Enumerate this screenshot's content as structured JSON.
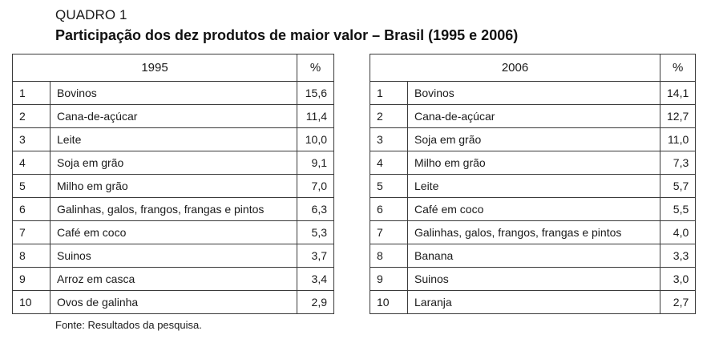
{
  "heading": "QUADRO 1",
  "title": "Participação dos dez produtos de maior valor – Brasil (1995 e 2006)",
  "tables": [
    {
      "year": "1995",
      "pct_header": "%",
      "rows": [
        {
          "rank": "1",
          "product": "Bovinos",
          "pct": "15,6"
        },
        {
          "rank": "2",
          "product": "Cana-de-açúcar",
          "pct": "11,4"
        },
        {
          "rank": "3",
          "product": "Leite",
          "pct": "10,0"
        },
        {
          "rank": "4",
          "product": "Soja em grão",
          "pct": "9,1"
        },
        {
          "rank": "5",
          "product": "Milho em grão",
          "pct": "7,0"
        },
        {
          "rank": "6",
          "product": "Galinhas, galos, frangos, frangas e pintos",
          "pct": "6,3"
        },
        {
          "rank": "7",
          "product": "Café em coco",
          "pct": "5,3"
        },
        {
          "rank": "8",
          "product": "Suinos",
          "pct": "3,7"
        },
        {
          "rank": "9",
          "product": "Arroz em casca",
          "pct": "3,4"
        },
        {
          "rank": "10",
          "product": "Ovos de galinha",
          "pct": "2,9"
        }
      ]
    },
    {
      "year": "2006",
      "pct_header": "%",
      "rows": [
        {
          "rank": "1",
          "product": "Bovinos",
          "pct": "14,1"
        },
        {
          "rank": "2",
          "product": "Cana-de-açúcar",
          "pct": "12,7"
        },
        {
          "rank": "3",
          "product": "Soja em grão",
          "pct": "11,0"
        },
        {
          "rank": "4",
          "product": "Milho em grão",
          "pct": "7,3"
        },
        {
          "rank": "5",
          "product": "Leite",
          "pct": "5,7"
        },
        {
          "rank": "6",
          "product": "Café em coco",
          "pct": "5,5"
        },
        {
          "rank": "7",
          "product": "Galinhas, galos, frangos, frangas e pintos",
          "pct": "4,0"
        },
        {
          "rank": "8",
          "product": "Banana",
          "pct": "3,3"
        },
        {
          "rank": "9",
          "product": "Suinos",
          "pct": "3,0"
        },
        {
          "rank": "10",
          "product": "Laranja",
          "pct": "2,7"
        }
      ]
    }
  ],
  "source": "Fonte: Resultados da pesquisa."
}
